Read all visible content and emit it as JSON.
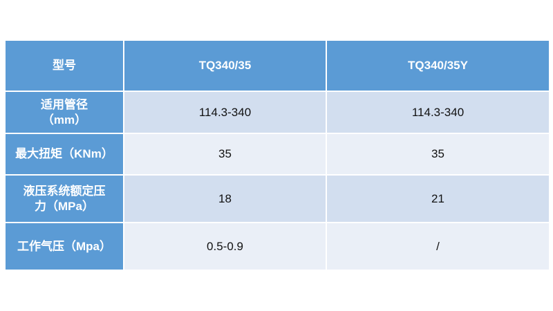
{
  "table": {
    "header": [
      "型号",
      "TQ340/35",
      "TQ340/35Y"
    ],
    "rows": [
      {
        "label": [
          "适用管径",
          "（mm）"
        ],
        "cells": [
          "114.3-340",
          "114.3-340"
        ]
      },
      {
        "label": [
          "最大扭矩（KNm）"
        ],
        "cells": [
          "35",
          "35"
        ]
      },
      {
        "label": [
          "液压系统额定压",
          "力（MPa）"
        ],
        "cells": [
          "18",
          "21"
        ]
      },
      {
        "label": [
          "工作气压（Mpa）"
        ],
        "cells": [
          "0.5-0.9",
          "/"
        ]
      }
    ]
  }
}
